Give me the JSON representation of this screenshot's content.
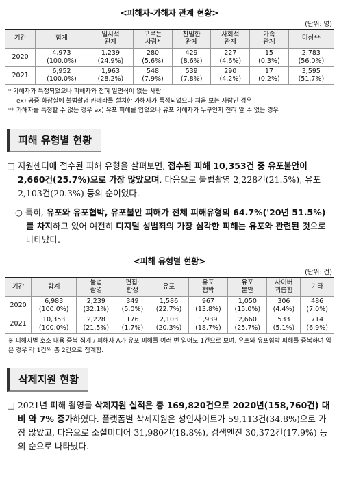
{
  "table1": {
    "title": "<피해자-가해자 관계 현황>",
    "unit": "(단위: 명)",
    "header": [
      "기간",
      "합계",
      "일시적\n관계",
      "모르는\n사람*",
      "친밀한\n관계",
      "사회적\n관계",
      "가족\n관계",
      "미상**"
    ],
    "rows": [
      [
        "2020",
        [
          "4,973",
          "(100.0%)"
        ],
        [
          "1,239",
          "(24.9%)"
        ],
        [
          "280",
          "(5.6%)"
        ],
        [
          "429",
          "(8.6%)"
        ],
        [
          "227",
          "(4.6%)"
        ],
        [
          "15",
          "(0.3%)"
        ],
        [
          "2,783",
          "(56.0%)"
        ]
      ],
      [
        "2021",
        [
          "6,952",
          "(100.0%)"
        ],
        [
          "1,963",
          "(28.2%)"
        ],
        [
          "548",
          "(7.9%)"
        ],
        [
          "539",
          "(7.8%)"
        ],
        [
          "290",
          "(4.2%)"
        ],
        [
          "17",
          "(0.2%)"
        ],
        [
          "3,595",
          "(51.7%)"
        ]
      ]
    ],
    "notes": [
      "* 가해자가 특정되었으나 피해자와 전혀 일면식이 없는 사람",
      "ex) 공중 화장실에 불법촬영 카메라를 설치한 가해자가 특정되었으나 처음 보는 사람인 경우",
      "** 가해자를 특정할 수 없는 경우 ex) 유포 피해를 입었으나 유포 가해자가 누구인지 전혀 알 수 없는 경우"
    ]
  },
  "section1": {
    "heading": "피해 유형별 현황",
    "para1": {
      "marker": "□",
      "runs": [
        "지원센터에 접수된 피해 유형을 살펴보면, ",
        "접수된 피해 10,353건 중 유포불안이 2,660건(25.7%)으로 가장 많았으며",
        ", 다음으로 불법촬영 2,228건(21.5%), 유포 2,103건(20.3%) 등의 순이었다."
      ]
    },
    "para2": {
      "marker": "○",
      "runs": [
        "특히, ",
        "유포와 유포협박, 유포불안 피해가 전체 피해유형의 64.7%('20년 51.5%)를 차지",
        "하고 있어 여전히 ",
        "디지털 성범죄의 가장 심각한 피해는 유포와 관련된 것",
        "으로 나타났다."
      ]
    }
  },
  "table2": {
    "title": "<피해 유형별 현황>",
    "unit": "(단위: 건)",
    "header": [
      "기간",
      "합계",
      "불법\n촬영",
      "편집·\n합성",
      "유포",
      "유포\n협박",
      "유포\n불안",
      "사이버\n괴롭힘",
      "기타"
    ],
    "rows": [
      [
        "2020",
        [
          "6,983",
          "(100.0%)"
        ],
        [
          "2,239",
          "(32.1%)"
        ],
        [
          "349",
          "(5.0%)"
        ],
        [
          "1,586",
          "(22.7%)"
        ],
        [
          "967",
          "(13.8%)"
        ],
        [
          "1,050",
          "(15.0%)"
        ],
        [
          "306",
          "(4.4%)"
        ],
        [
          "486",
          "(7.0%)"
        ]
      ],
      [
        "2021",
        [
          "10,353",
          "(100.0%)"
        ],
        [
          "2,228",
          "(21.5%)"
        ],
        [
          "176",
          "(1.7%)"
        ],
        [
          "2,103",
          "(20.3%)"
        ],
        [
          "1,939",
          "(18.7%)"
        ],
        [
          "2,660",
          "(25.7%)"
        ],
        [
          "533",
          "(5.1%)"
        ],
        [
          "714",
          "(6.9%)"
        ]
      ]
    ],
    "note": "※ 피해자별 호소 내용 중복 집계 / 피해자 A가 유포 피해를 여러 번 입어도 1건으로 보며, 유포와 유포협박 피해를 중복하여 입은 경우 각 1건씩 총 2건으로 집계함."
  },
  "section2": {
    "heading": "삭제지원 현황",
    "para1": {
      "marker": "□",
      "runs": [
        "2021년 피해 촬영물 ",
        "삭제지원 실적은 총 169,820건으로 2020년(158,760건) 대비 약 7% 증가",
        "하였다. 플랫폼별 삭제지원은 성인사이트가 59,113건(34.8%)으로 가장 많았고, 다음으로 소셜미디어 31,980건(18.8%), 검색엔진 30,372건(17.9%) 등의 순으로 나타났다."
      ]
    }
  }
}
